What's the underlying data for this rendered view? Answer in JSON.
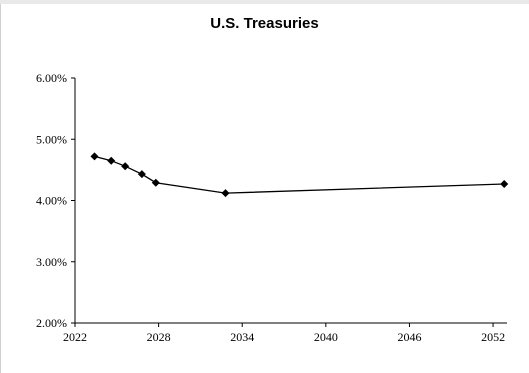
{
  "chart_data": {
    "type": "line",
    "title": "U.S. Treasuries",
    "xlabel": "",
    "ylabel": "",
    "xlim": [
      2022,
      2053
    ],
    "ylim": [
      2.0,
      6.0
    ],
    "xticks": [
      2022,
      2028,
      2034,
      2040,
      2046,
      2052
    ],
    "xtick_labels": [
      "2022",
      "2028",
      "2034",
      "2040",
      "2046",
      "2052"
    ],
    "yticks": [
      2.0,
      3.0,
      4.0,
      5.0,
      6.0
    ],
    "ytick_labels": [
      "2.00%",
      "3.00%",
      "4.00%",
      "5.00%",
      "6.00%"
    ],
    "grid": false,
    "legend": "none",
    "series": [
      {
        "color": "#000000",
        "marker": "diamond",
        "points": [
          {
            "x": 2023.4,
            "y": 4.72
          },
          {
            "x": 2024.6,
            "y": 4.65
          },
          {
            "x": 2025.6,
            "y": 4.56
          },
          {
            "x": 2026.8,
            "y": 4.43
          },
          {
            "x": 2027.8,
            "y": 4.29
          },
          {
            "x": 2032.8,
            "y": 4.12
          },
          {
            "x": 2052.8,
            "y": 4.27
          }
        ]
      }
    ]
  }
}
